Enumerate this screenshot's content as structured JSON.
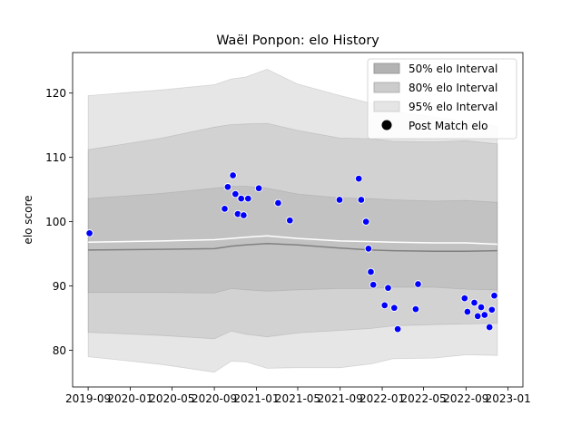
{
  "chart_data": {
    "type": "line",
    "title": "Waël Ponpon: elo History",
    "xlabel": "",
    "ylabel": "elo score",
    "x_ticks": [
      "2019-09",
      "2020-01",
      "2020-05",
      "2020-09",
      "2021-01",
      "2021-05",
      "2021-09",
      "2022-01",
      "2022-05",
      "2022-09",
      "2023-01"
    ],
    "y_ticks": [
      80,
      90,
      100,
      110,
      120
    ],
    "xlim": [
      "2019-07-18",
      "2023-02-13"
    ],
    "ylim": [
      74.3,
      126.3
    ],
    "grid": false,
    "legend_position": "top-right",
    "legend": [
      {
        "label": "50% elo Interval",
        "color": "#b3b3b3"
      },
      {
        "label": "80% elo Interval",
        "color": "#cccccc"
      },
      {
        "label": "95% elo Interval",
        "color": "#e5e5e5"
      },
      {
        "label": "Post Match elo",
        "color": "#000000"
      }
    ],
    "colors": {
      "point": "#0000ff",
      "point_edge": "#ffffff",
      "mean_line": "#808080",
      "mean_line_2": "#ffffff"
    },
    "bands": {
      "x": [
        "2019-09-01",
        "2020-04-01",
        "2020-09-01",
        "2020-10-20",
        "2020-12-01",
        "2021-02-01",
        "2021-05-01",
        "2021-09-01",
        "2021-12-01",
        "2022-02-01",
        "2022-06-01",
        "2022-09-01",
        "2022-12-01"
      ],
      "p95_low": [
        79.0,
        77.8,
        76.6,
        78.3,
        78.2,
        77.2,
        77.3,
        77.3,
        77.9,
        78.7,
        78.8,
        79.3,
        79.2
      ],
      "p95_high": [
        119.6,
        120.5,
        121.3,
        122.2,
        122.5,
        123.7,
        121.4,
        119.6,
        118.4,
        117.1,
        116.3,
        115.6,
        114.8
      ],
      "p80_low": [
        82.8,
        82.3,
        81.8,
        83.0,
        82.5,
        82.1,
        82.7,
        83.1,
        83.4,
        83.8,
        84.0,
        84.1,
        84.2
      ],
      "p80_high": [
        111.2,
        113.0,
        114.7,
        115.1,
        115.2,
        115.3,
        114.2,
        113.0,
        112.9,
        112.5,
        112.4,
        112.6,
        112.1
      ],
      "p50_low": [
        89.0,
        89.0,
        88.9,
        89.6,
        89.4,
        89.2,
        89.4,
        89.6,
        89.6,
        89.8,
        89.8,
        89.5,
        89.4
      ],
      "p50_high": [
        103.6,
        104.4,
        105.2,
        105.5,
        105.5,
        105.2,
        104.3,
        103.7,
        103.6,
        103.4,
        103.2,
        103.3,
        103.0
      ],
      "mean": [
        95.6,
        95.7,
        95.8,
        96.2,
        96.4,
        96.6,
        96.4,
        95.9,
        95.6,
        95.5,
        95.4,
        95.4,
        95.5
      ],
      "mean_2": [
        96.8,
        97.0,
        97.2,
        97.4,
        97.6,
        97.8,
        97.4,
        97.0,
        96.9,
        96.8,
        96.7,
        96.7,
        96.5
      ]
    },
    "series": [
      {
        "name": "Post Match elo",
        "points": [
          [
            "2019-09-05",
            98.2
          ],
          [
            "2020-10-01",
            102.0
          ],
          [
            "2020-10-10",
            105.4
          ],
          [
            "2020-10-25",
            107.2
          ],
          [
            "2020-11-01",
            104.3
          ],
          [
            "2020-11-08",
            101.2
          ],
          [
            "2020-11-18",
            103.6
          ],
          [
            "2020-11-25",
            101.0
          ],
          [
            "2020-12-08",
            103.6
          ],
          [
            "2021-01-08",
            105.2
          ],
          [
            "2021-03-05",
            102.9
          ],
          [
            "2021-04-08",
            100.2
          ],
          [
            "2021-08-30",
            103.4
          ],
          [
            "2021-10-25",
            106.7
          ],
          [
            "2021-11-01",
            103.4
          ],
          [
            "2021-11-15",
            100.0
          ],
          [
            "2021-11-22",
            95.8
          ],
          [
            "2021-11-29",
            92.2
          ],
          [
            "2021-12-06",
            90.2
          ],
          [
            "2022-01-08",
            87.0
          ],
          [
            "2022-01-18",
            89.7
          ],
          [
            "2022-02-05",
            86.6
          ],
          [
            "2022-02-15",
            83.3
          ],
          [
            "2022-04-08",
            86.4
          ],
          [
            "2022-04-15",
            90.3
          ],
          [
            "2022-08-28",
            88.1
          ],
          [
            "2022-09-05",
            86.0
          ],
          [
            "2022-09-25",
            87.4
          ],
          [
            "2022-10-05",
            85.3
          ],
          [
            "2022-10-15",
            86.7
          ],
          [
            "2022-10-25",
            85.5
          ],
          [
            "2022-11-08",
            83.6
          ],
          [
            "2022-11-15",
            86.3
          ],
          [
            "2022-11-22",
            88.5
          ]
        ]
      }
    ]
  }
}
